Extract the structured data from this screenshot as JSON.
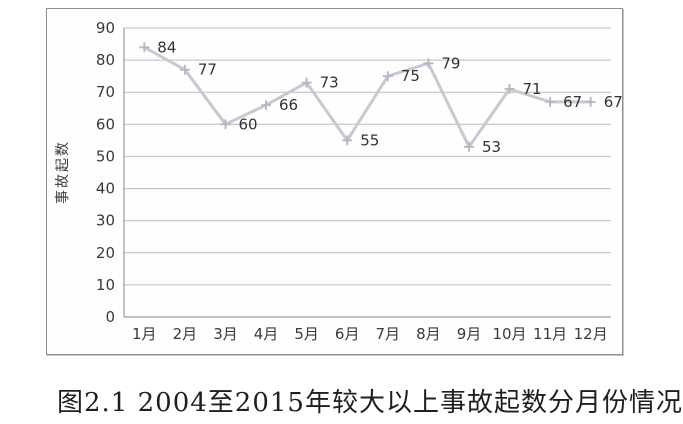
{
  "caption": "图2.1 2004至2015年较大以上事故起数分月份情况",
  "chart_data": {
    "type": "line",
    "categories": [
      "1月",
      "2月",
      "3月",
      "4月",
      "5月",
      "6月",
      "7月",
      "8月",
      "9月",
      "10月",
      "11月",
      "12月"
    ],
    "values": [
      84,
      77,
      60,
      66,
      73,
      55,
      75,
      79,
      53,
      71,
      67,
      67
    ],
    "title": "",
    "xlabel": "",
    "ylabel": "事故起数",
    "ylim": [
      0,
      90
    ],
    "ytick_step": 10,
    "grid": true,
    "legend": "none",
    "marker": "plus",
    "data_labels": true,
    "colors": {
      "line": "#c6c8d2",
      "marker": "#b3b6c4",
      "grid": "#bcbcbc",
      "axis": "#9a9a9a",
      "tick_label": "#3a3a3a",
      "data_label": "#333333",
      "frame_border": "#8d8f93"
    }
  }
}
